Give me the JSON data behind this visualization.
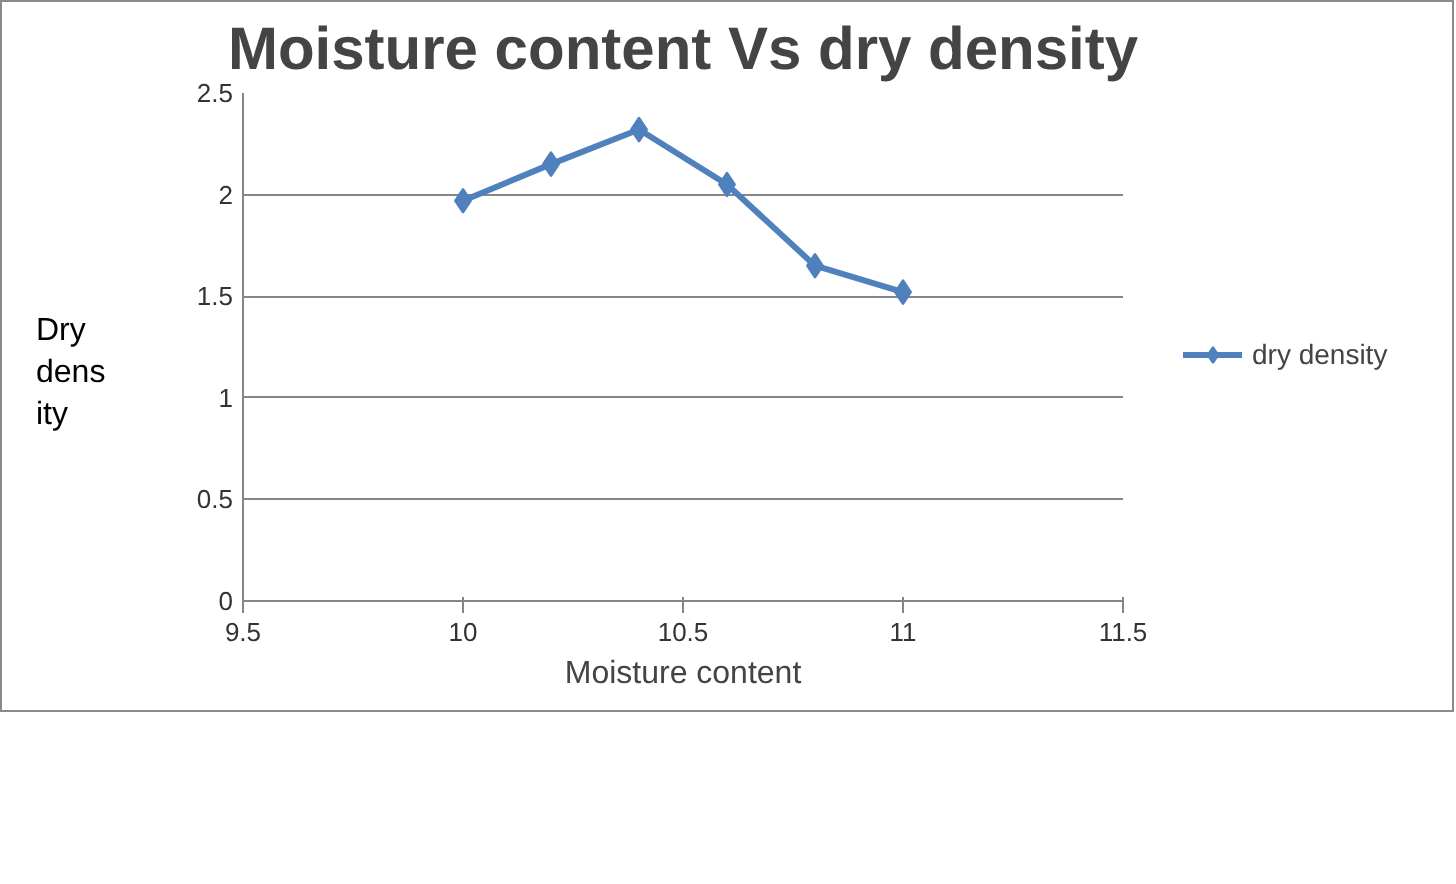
{
  "chart_data": {
    "type": "line",
    "title": "Moisture content Vs dry density",
    "xlabel": "Moisture content",
    "ylabel": "Dry density",
    "x": [
      10,
      10.2,
      10.4,
      10.6,
      10.8,
      11
    ],
    "series": [
      {
        "name": "dry density",
        "color": "#4f81bd",
        "values": [
          1.97,
          2.15,
          2.32,
          2.05,
          1.65,
          1.52
        ]
      }
    ],
    "xlim": [
      9.5,
      11.5
    ],
    "xticks": [
      9.5,
      10,
      10.5,
      11,
      11.5
    ],
    "ylim": [
      0,
      2.5
    ],
    "yticks": [
      0,
      0.5,
      1,
      1.5,
      2,
      2.5
    ],
    "grid": "y",
    "legend": "right",
    "marker": "diamond",
    "line_style": "solid"
  }
}
